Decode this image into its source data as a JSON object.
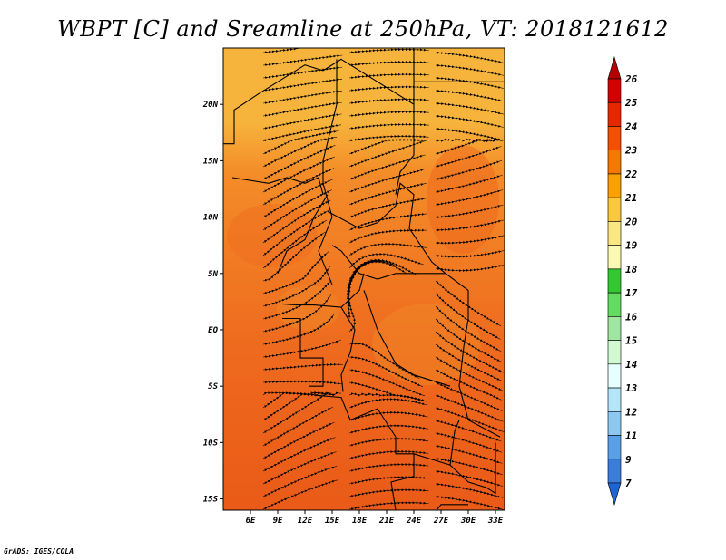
{
  "title": "WBPT [C] and Sreamline at 250hPa, VT: 2018121612",
  "credit": "GrADS: IGES/COLA",
  "map": {
    "lon_range": [
      3,
      34
    ],
    "lat_range": [
      -16,
      25
    ],
    "lat_ticks": [
      {
        "value": 20,
        "label": "20N"
      },
      {
        "value": 15,
        "label": "15N"
      },
      {
        "value": 10,
        "label": "10N"
      },
      {
        "value": 5,
        "label": "5N"
      },
      {
        "value": 0,
        "label": "EQ"
      },
      {
        "value": -5,
        "label": "5S"
      },
      {
        "value": -10,
        "label": "10S"
      },
      {
        "value": -15,
        "label": "15S"
      }
    ],
    "lon_ticks": [
      {
        "value": 6,
        "label": "6E"
      },
      {
        "value": 9,
        "label": "9E"
      },
      {
        "value": 12,
        "label": "12E"
      },
      {
        "value": 15,
        "label": "15E"
      },
      {
        "value": 18,
        "label": "18E"
      },
      {
        "value": 21,
        "label": "21E"
      },
      {
        "value": 24,
        "label": "24E"
      },
      {
        "value": 27,
        "label": "27E"
      },
      {
        "value": 30,
        "label": "30E"
      },
      {
        "value": 33,
        "label": "33E"
      }
    ]
  },
  "colorbar": {
    "levels": [
      "26",
      "25",
      "24",
      "23",
      "22",
      "21",
      "20",
      "19",
      "18",
      "17",
      "16",
      "15",
      "14",
      "13",
      "12",
      "11",
      "9",
      "7"
    ],
    "colors": [
      "#b40000",
      "#d20000",
      "#e62800",
      "#f05000",
      "#f57800",
      "#faa000",
      "#fac83c",
      "#fae682",
      "#fafab4",
      "#32c832",
      "#64dc64",
      "#a0e6a0",
      "#d2fad2",
      "#e6ffff",
      "#b4e6fa",
      "#8cc8f0",
      "#5aa0e6",
      "#3c7ddc",
      "#1e64d2"
    ]
  },
  "fill_colors": {
    "north": "#f7b43c",
    "mid": "#f48c28",
    "south": "#ee6a1e",
    "deep": "#ea5a18"
  }
}
